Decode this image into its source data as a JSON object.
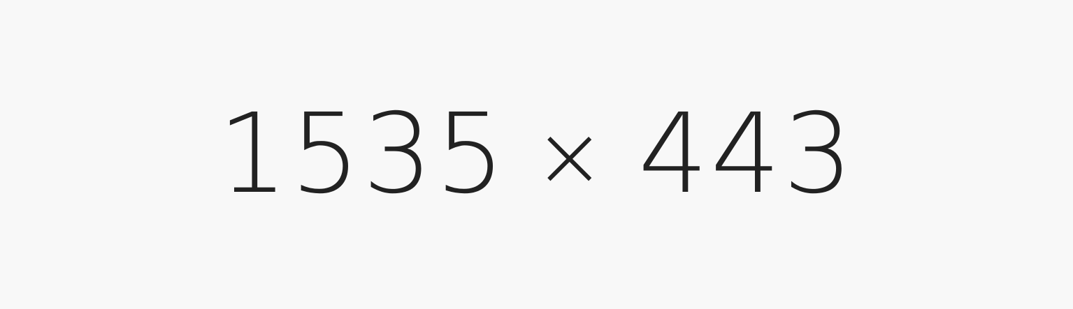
{
  "placeholder": {
    "width_text": "1535",
    "times_text": "×",
    "height_text": "443"
  }
}
